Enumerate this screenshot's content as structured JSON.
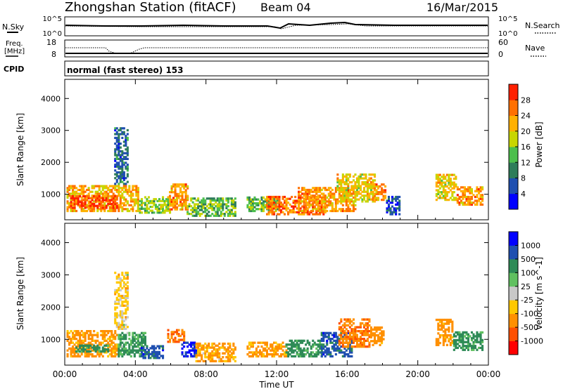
{
  "header": {
    "station": "Zhongshan Station (fitACF)",
    "beam": "Beam 04",
    "date": "16/Mar/2015"
  },
  "panels": {
    "nsky_label": "N.Sky",
    "nsearch_label": "N.Search",
    "freq_label_line1": "Freq.",
    "freq_label_line2": "[MHz]",
    "nave_label": "Nave",
    "cpid_label": "CPID",
    "cpid_text": "normal (fast stereo) 153",
    "noise_left_ticks": [
      "10^5",
      "10^0"
    ],
    "noise_right_ticks": [
      "10^5",
      "10^0"
    ],
    "freq_left_ticks": [
      "18",
      "8"
    ],
    "nave_right_ticks": [
      "60",
      "0"
    ]
  },
  "colors": {
    "power": [
      "#0000ff",
      "#1f4fb0",
      "#2e7d5a",
      "#4cbf4c",
      "#c8d600",
      "#ffb000",
      "#ff7000",
      "#ff2000"
    ],
    "velocity": [
      "#ff0000",
      "#ff5000",
      "#ff9000",
      "#ffc800",
      "#c8c8c8",
      "#60c060",
      "#2e8b57",
      "#1f4fb0",
      "#0000ff"
    ]
  },
  "chart_data": [
    {
      "type": "heatmap",
      "parameter": "power",
      "title": "",
      "xlabel": "Time UT",
      "ylabel": "Slant Range [km]",
      "xlim": [
        "00:00",
        "24:00"
      ],
      "ylim": [
        200,
        4600
      ],
      "x_ticks": [
        "00:00",
        "04:00",
        "08:00",
        "12:00",
        "16:00",
        "20:00",
        "00:00"
      ],
      "y_ticks": [
        1000,
        2000,
        3000,
        4000
      ],
      "colorbar_label": "Power [dB]",
      "colorbar_ticks": [
        "4",
        "8",
        "12",
        "16",
        "20",
        "24",
        "28"
      ],
      "colorbar_range": [
        0,
        32
      ],
      "regions": [
        {
          "t0": 0.1,
          "t1": 4.2,
          "r0": 450,
          "r1": 1250,
          "level": 22
        },
        {
          "t0": 0.3,
          "t1": 3.0,
          "r0": 550,
          "r1": 950,
          "level": 28
        },
        {
          "t0": 2.8,
          "t1": 3.6,
          "r0": 1300,
          "r1": 3050,
          "level": 8
        },
        {
          "t0": 4.2,
          "t1": 5.9,
          "r0": 400,
          "r1": 900,
          "level": 16
        },
        {
          "t0": 5.9,
          "t1": 6.9,
          "r0": 500,
          "r1": 1300,
          "level": 24
        },
        {
          "t0": 6.9,
          "t1": 9.6,
          "r0": 300,
          "r1": 900,
          "level": 14
        },
        {
          "t0": 10.3,
          "t1": 12.0,
          "r0": 450,
          "r1": 900,
          "level": 14
        },
        {
          "t0": 11.4,
          "t1": 14.7,
          "r0": 350,
          "r1": 900,
          "level": 26
        },
        {
          "t0": 13.2,
          "t1": 16.4,
          "r0": 450,
          "r1": 1200,
          "level": 24
        },
        {
          "t0": 15.4,
          "t1": 17.6,
          "r0": 750,
          "r1": 1650,
          "level": 20
        },
        {
          "t0": 17.4,
          "t1": 18.2,
          "r0": 800,
          "r1": 1300,
          "level": 24
        },
        {
          "t0": 18.2,
          "t1": 19.0,
          "r0": 350,
          "r1": 900,
          "level": 6
        },
        {
          "t0": 21.0,
          "t1": 22.2,
          "r0": 800,
          "r1": 1600,
          "level": 20
        },
        {
          "t0": 22.2,
          "t1": 23.7,
          "r0": 650,
          "r1": 1250,
          "level": 24
        }
      ]
    },
    {
      "type": "heatmap",
      "parameter": "velocity",
      "title": "",
      "xlabel": "Time UT",
      "ylabel": "Slant Range [km]",
      "xlim": [
        "00:00",
        "24:00"
      ],
      "ylim": [
        200,
        4600
      ],
      "x_ticks": [
        "00:00",
        "04:00",
        "08:00",
        "12:00",
        "16:00",
        "20:00",
        "00:00"
      ],
      "y_ticks": [
        1000,
        2000,
        3000,
        4000
      ],
      "colorbar_label": "Velocity [m s^-1]",
      "colorbar_ticks": [
        "1000",
        "500",
        "100",
        "25",
        "-25",
        "-100",
        "-500",
        "-1000"
      ],
      "regions": [
        {
          "t0": 0.1,
          "t1": 3.0,
          "r0": 450,
          "r1": 1250,
          "level": -150
        },
        {
          "t0": 0.5,
          "t1": 2.5,
          "r0": 600,
          "r1": 800,
          "level": 150
        },
        {
          "t0": 2.8,
          "t1": 3.6,
          "r0": 1300,
          "r1": 3050,
          "level": -50
        },
        {
          "t0": 3.0,
          "t1": 4.5,
          "r0": 450,
          "r1": 1200,
          "level": 120
        },
        {
          "t0": 4.3,
          "t1": 5.5,
          "r0": 400,
          "r1": 800,
          "level": 700
        },
        {
          "t0": 5.8,
          "t1": 6.7,
          "r0": 900,
          "r1": 1300,
          "level": -450
        },
        {
          "t0": 6.6,
          "t1": 7.4,
          "r0": 450,
          "r1": 900,
          "level": 1100
        },
        {
          "t0": 7.4,
          "t1": 9.6,
          "r0": 300,
          "r1": 850,
          "level": -120
        },
        {
          "t0": 10.3,
          "t1": 12.5,
          "r0": 450,
          "r1": 900,
          "level": -150
        },
        {
          "t0": 12.5,
          "t1": 14.5,
          "r0": 450,
          "r1": 950,
          "level": 150
        },
        {
          "t0": 14.5,
          "t1": 16.2,
          "r0": 450,
          "r1": 1200,
          "level": 700
        },
        {
          "t0": 15.5,
          "t1": 17.3,
          "r0": 750,
          "r1": 1650,
          "level": -450
        },
        {
          "t0": 17.3,
          "t1": 18.1,
          "r0": 800,
          "r1": 1400,
          "level": -250
        },
        {
          "t0": 21.0,
          "t1": 22.0,
          "r0": 800,
          "r1": 1600,
          "level": -200
        },
        {
          "t0": 22.0,
          "t1": 23.7,
          "r0": 650,
          "r1": 1250,
          "level": 150
        }
      ]
    }
  ]
}
